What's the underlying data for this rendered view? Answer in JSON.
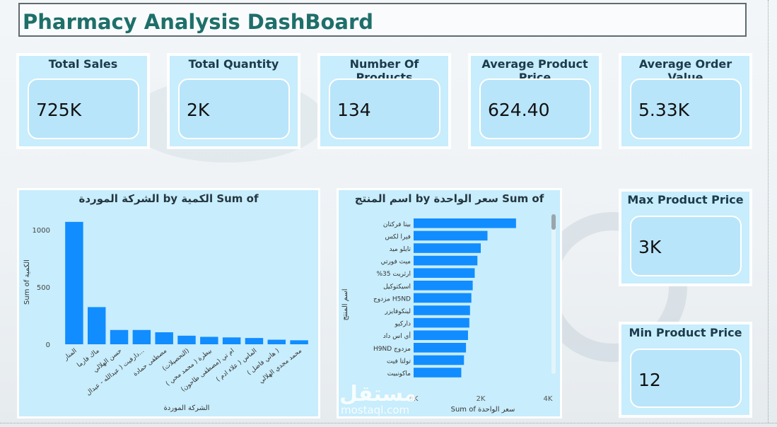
{
  "dashboard": {
    "title": "Pharmacy Analysis DashBoard"
  },
  "kpis": {
    "total_sales": {
      "label": "Total Sales",
      "value": "725K"
    },
    "total_quantity": {
      "label": "Total Quantity",
      "value": "2K"
    },
    "num_products": {
      "label": "Number Of Products",
      "value": "134"
    },
    "avg_product_price": {
      "label": "Average Product Price",
      "value": "624.40"
    },
    "avg_order_value": {
      "label": "Average Order Value",
      "value": "5.33K"
    },
    "max_product_price": {
      "label": "Max Product Price",
      "value": "3K"
    },
    "min_product_price": {
      "label": "Min Product Price",
      "value": "12"
    }
  },
  "watermark": {
    "text": "مستقل",
    "url": "mostaql.com"
  },
  "chart_data": [
    {
      "type": "bar",
      "title": "الشركة الموردة by الكمية Sum of",
      "xlabel": "الشركة الموردة",
      "ylabel": "Sum of الكمية",
      "ylim": [
        0,
        1100
      ],
      "yticks": [
        "0",
        "500",
        "1000"
      ],
      "categories": [
        "المنار",
        "ماك فارما",
        "حسن الهلالي",
        "دارفيت ( عبدالله - عبدال...",
        "مصطفى حمادة",
        "(التحصيلات)",
        "بيطرة ( محمد محي )",
        "ام تي (مصطفى طاحون)",
        "الماس ( علاء ادم )",
        "( هاني فاضل )",
        "محمد مجدي الهلالي"
      ],
      "values": [
        1070,
        325,
        125,
        125,
        105,
        75,
        65,
        60,
        55,
        40,
        35
      ],
      "grid": false
    },
    {
      "type": "bar",
      "orientation": "horizontal",
      "title": "اسم المنتج by سعر الواحدة Sum of",
      "xlabel": "Sum of سعر الواحدة",
      "ylabel": "اسم المنتج",
      "xlim": [
        0,
        4000
      ],
      "xticks": [
        "0K",
        "2K",
        "4K"
      ],
      "categories": [
        "بيتا فركتان",
        "فيرا لكس",
        "تايلو ميد",
        "ميث فورتي",
        "%ارثريت 35",
        "اسيكتوكيل",
        "مزدوج H5ND",
        "لينكوفايزر",
        "داركيو",
        "أي اس داد",
        "H9ND مزدوج",
        "تولتا فيت",
        "ماكونبيت"
      ],
      "values": [
        3050,
        2200,
        2000,
        1900,
        1820,
        1760,
        1720,
        1680,
        1660,
        1620,
        1560,
        1500,
        1420
      ],
      "grid": false
    }
  ]
}
